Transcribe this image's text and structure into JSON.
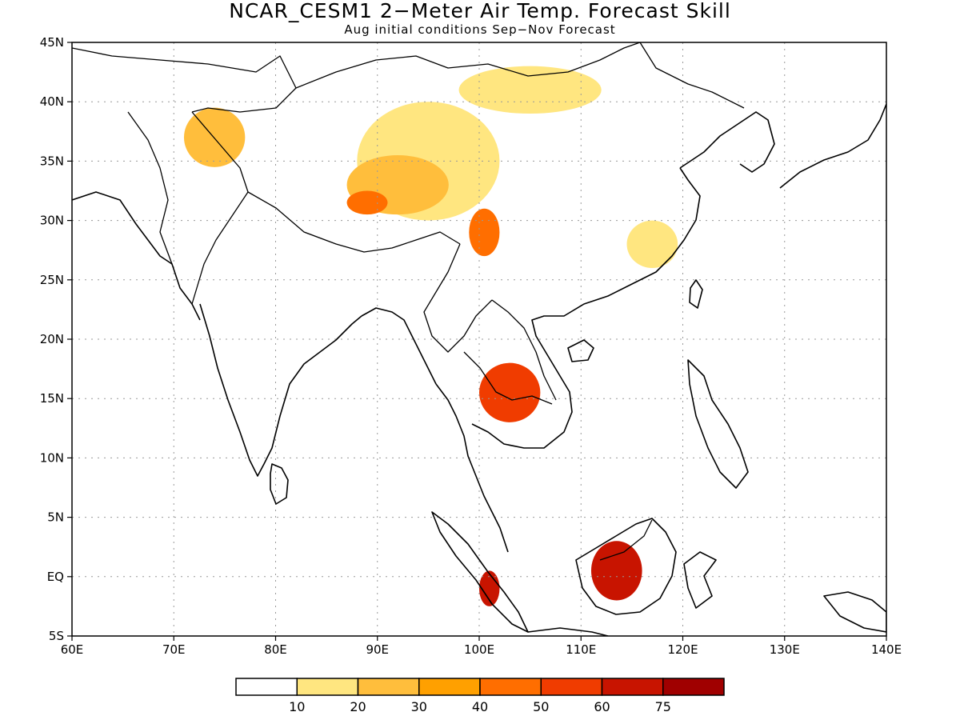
{
  "title": "NCAR_CESM1 2−Meter Air Temp. Forecast Skill",
  "subtitle": "Aug initial conditions  Sep−Nov Forecast",
  "map": {
    "lon_range": [
      60,
      140
    ],
    "lat_range": [
      -5,
      45
    ],
    "lon_ticks": [
      {
        "value": 60,
        "label": "60E"
      },
      {
        "value": 70,
        "label": "70E"
      },
      {
        "value": 80,
        "label": "80E"
      },
      {
        "value": 90,
        "label": "90E"
      },
      {
        "value": 100,
        "label": "100E"
      },
      {
        "value": 110,
        "label": "110E"
      },
      {
        "value": 120,
        "label": "120E"
      },
      {
        "value": 130,
        "label": "130E"
      },
      {
        "value": 140,
        "label": "140E"
      }
    ],
    "lat_ticks": [
      {
        "value": -5,
        "label": "5S"
      },
      {
        "value": 0,
        "label": "EQ"
      },
      {
        "value": 5,
        "label": "5N"
      },
      {
        "value": 10,
        "label": "10N"
      },
      {
        "value": 15,
        "label": "15N"
      },
      {
        "value": 20,
        "label": "20N"
      },
      {
        "value": 25,
        "label": "25N"
      },
      {
        "value": 30,
        "label": "30N"
      },
      {
        "value": 35,
        "label": "35N"
      },
      {
        "value": 40,
        "label": "40N"
      },
      {
        "value": 45,
        "label": "45N"
      }
    ],
    "colorbar": {
      "colors": [
        "#ffffff",
        "#ffe680",
        "#ffbe3c",
        "#ffa000",
        "#ff6e00",
        "#f03c00",
        "#c81400",
        "#a00000"
      ],
      "labels": [
        "10",
        "20",
        "30",
        "40",
        "50",
        "60",
        "75"
      ]
    },
    "skill_regions": [
      {
        "name": "tibet-plateau",
        "level": 1,
        "lat": 35,
        "lon": 95,
        "lat_span": 10,
        "lon_span": 14
      },
      {
        "name": "karakoram",
        "level": 2,
        "lat": 37,
        "lon": 74,
        "lat_span": 5,
        "lon_span": 6
      },
      {
        "name": "central-tibet",
        "level": 2,
        "lat": 33,
        "lon": 92,
        "lat_span": 5,
        "lon_span": 10
      },
      {
        "name": "western-tibet-core",
        "level": 4,
        "lat": 31.5,
        "lon": 89,
        "lat_span": 2,
        "lon_span": 4
      },
      {
        "name": "sichuan-yunnan",
        "level": 4,
        "lat": 29,
        "lon": 100.5,
        "lat_span": 4,
        "lon_span": 3
      },
      {
        "name": "indochina",
        "level": 5,
        "lat": 15.5,
        "lon": 103,
        "lat_span": 5,
        "lon_span": 6
      },
      {
        "name": "borneo",
        "level": 6,
        "lat": 0.5,
        "lon": 113.5,
        "lat_span": 5,
        "lon_span": 5
      },
      {
        "name": "sumatra",
        "level": 6,
        "lat": -1,
        "lon": 101,
        "lat_span": 3,
        "lon_span": 2
      },
      {
        "name": "eastern-china",
        "level": 1,
        "lat": 28,
        "lon": 117,
        "lat_span": 4,
        "lon_span": 5
      },
      {
        "name": "mongolia",
        "level": 1,
        "lat": 41,
        "lon": 105,
        "lat_span": 4,
        "lon_span": 14
      }
    ]
  }
}
